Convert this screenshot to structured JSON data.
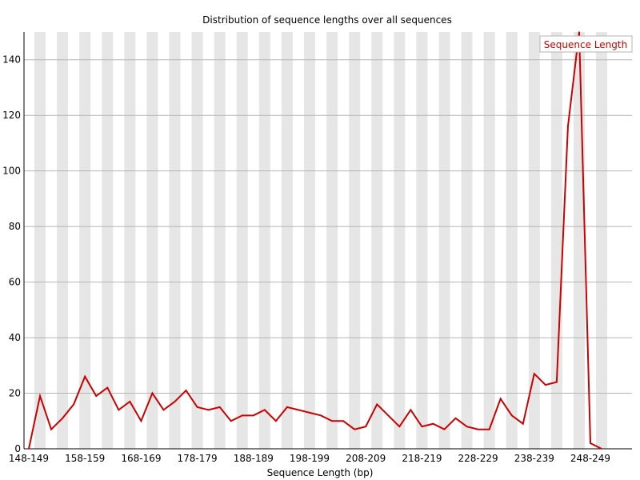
{
  "chart_data": {
    "type": "line",
    "title": "Distribution of sequence lengths over all sequences",
    "xlabel": "Sequence Length (bp)",
    "ylabel": "",
    "ylim": [
      0,
      150
    ],
    "yticks": [
      0,
      20,
      40,
      60,
      80,
      100,
      120,
      140
    ],
    "grid": "horizontal",
    "background_bands": "alternating grey vertical stripes",
    "legend_position": "top-right",
    "colors": {
      "series": "#cc0000",
      "band": "#e6e6e6",
      "grid": "#b4b4b4",
      "axis": "#000000"
    },
    "categories": [
      "148-149",
      "150-151",
      "152-153",
      "154-155",
      "156-157",
      "158-159",
      "160-161",
      "162-163",
      "164-165",
      "166-167",
      "168-169",
      "170-171",
      "172-173",
      "174-175",
      "176-177",
      "178-179",
      "180-181",
      "182-183",
      "184-185",
      "186-187",
      "188-189",
      "190-191",
      "192-193",
      "194-195",
      "196-197",
      "198-199",
      "200-201",
      "202-203",
      "204-205",
      "206-207",
      "208-209",
      "210-211",
      "212-213",
      "214-215",
      "216-217",
      "218-219",
      "220-221",
      "222-223",
      "224-225",
      "226-227",
      "228-229",
      "230-231",
      "232-233",
      "234-235",
      "236-237",
      "238-239",
      "240-241",
      "242-243",
      "244-245",
      "246-247",
      "248-249",
      "250-251"
    ],
    "x_tick_labels": [
      "148-149",
      "158-159",
      "168-169",
      "178-179",
      "188-189",
      "198-199",
      "208-209",
      "218-219",
      "228-229",
      "238-239",
      "248-249"
    ],
    "series": [
      {
        "name": "Sequence Length",
        "values": [
          0,
          19,
          7,
          11,
          16,
          26,
          19,
          22,
          14,
          17,
          10,
          20,
          14,
          17,
          21,
          15,
          14,
          15,
          10,
          12,
          12,
          14,
          10,
          15,
          14,
          13,
          12,
          10,
          10,
          7,
          8,
          16,
          12,
          8,
          14,
          8,
          9,
          7,
          11,
          8,
          7,
          7,
          18,
          12,
          9,
          27,
          23,
          24,
          116,
          150,
          2,
          0
        ]
      }
    ]
  }
}
